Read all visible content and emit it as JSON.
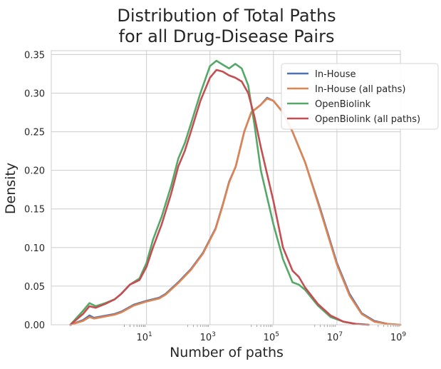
{
  "chart_data": {
    "type": "line",
    "title": [
      "Distribution of Total Paths",
      "for all Drug-Disease Pairs"
    ],
    "xlabel": "Number of paths",
    "ylabel": "Density",
    "xscale": "log10",
    "xlim": [
      0.01,
      1000000000
    ],
    "ylim": [
      0,
      0.355
    ],
    "x_ticks": [
      {
        "value": 10,
        "base": "10",
        "exp": "1"
      },
      {
        "value": 1000,
        "base": "10",
        "exp": "3"
      },
      {
        "value": 100000,
        "base": "10",
        "exp": "5"
      },
      {
        "value": 10000000,
        "base": "10",
        "exp": "7"
      },
      {
        "value": 1000000000,
        "base": "10",
        "exp": "9"
      }
    ],
    "y_ticks": [
      "0.00",
      "0.05",
      "0.10",
      "0.15",
      "0.20",
      "0.25",
      "0.30",
      "0.35"
    ],
    "grid": true,
    "legend_position": "top-right",
    "series": [
      {
        "name": "In-House",
        "color": "#4c72b0",
        "points": [
          [
            0.04,
            0
          ],
          [
            0.1,
            0.006
          ],
          [
            0.16,
            0.012
          ],
          [
            0.22,
            0.009
          ],
          [
            0.4,
            0.011
          ],
          [
            1,
            0.014
          ],
          [
            1.6,
            0.017
          ],
          [
            4,
            0.026
          ],
          [
            10,
            0.031
          ],
          [
            25,
            0.035
          ],
          [
            40,
            0.04
          ],
          [
            100,
            0.055
          ],
          [
            250,
            0.072
          ],
          [
            600,
            0.093
          ],
          [
            1500,
            0.125
          ],
          [
            2500,
            0.155
          ],
          [
            4000,
            0.185
          ],
          [
            6500,
            0.205
          ],
          [
            12000,
            0.25
          ],
          [
            20000,
            0.275
          ],
          [
            40000,
            0.285
          ],
          [
            63000,
            0.294
          ],
          [
            100000,
            0.29
          ],
          [
            200000,
            0.275
          ],
          [
            400000,
            0.25
          ],
          [
            1000000,
            0.21
          ],
          [
            3000000,
            0.15
          ],
          [
            10000000,
            0.08
          ],
          [
            25000000,
            0.04
          ],
          [
            60000000,
            0.015
          ],
          [
            150000000,
            0.005
          ],
          [
            400000000,
            0.001
          ],
          [
            1000000000,
            0
          ]
        ]
      },
      {
        "name": "In-House (all paths)",
        "color": "#dd8452",
        "points": [
          [
            0.04,
            0
          ],
          [
            0.1,
            0.005
          ],
          [
            0.16,
            0.01
          ],
          [
            0.22,
            0.008
          ],
          [
            0.4,
            0.01
          ],
          [
            1,
            0.013
          ],
          [
            1.6,
            0.016
          ],
          [
            4,
            0.025
          ],
          [
            10,
            0.03
          ],
          [
            25,
            0.034
          ],
          [
            40,
            0.039
          ],
          [
            100,
            0.054
          ],
          [
            250,
            0.071
          ],
          [
            600,
            0.092
          ],
          [
            1500,
            0.124
          ],
          [
            2500,
            0.154
          ],
          [
            4000,
            0.184
          ],
          [
            6500,
            0.205
          ],
          [
            12000,
            0.25
          ],
          [
            20000,
            0.275
          ],
          [
            40000,
            0.285
          ],
          [
            63000,
            0.293
          ],
          [
            100000,
            0.29
          ],
          [
            200000,
            0.275
          ],
          [
            400000,
            0.25
          ],
          [
            1000000,
            0.21
          ],
          [
            3000000,
            0.148
          ],
          [
            10000000,
            0.078
          ],
          [
            25000000,
            0.038
          ],
          [
            60000000,
            0.014
          ],
          [
            150000000,
            0.004
          ],
          [
            400000000,
            0.001
          ],
          [
            1000000000,
            0
          ]
        ]
      },
      {
        "name": "OpenBiolink",
        "color": "#55a868",
        "points": [
          [
            0.04,
            0
          ],
          [
            0.1,
            0.018
          ],
          [
            0.16,
            0.028
          ],
          [
            0.25,
            0.024
          ],
          [
            0.5,
            0.028
          ],
          [
            1,
            0.033
          ],
          [
            1.6,
            0.04
          ],
          [
            3,
            0.052
          ],
          [
            6,
            0.06
          ],
          [
            10,
            0.08
          ],
          [
            16,
            0.11
          ],
          [
            30,
            0.14
          ],
          [
            60,
            0.18
          ],
          [
            100,
            0.215
          ],
          [
            160,
            0.235
          ],
          [
            250,
            0.26
          ],
          [
            500,
            0.3
          ],
          [
            1000,
            0.335
          ],
          [
            1600,
            0.342
          ],
          [
            2500,
            0.337
          ],
          [
            4000,
            0.332
          ],
          [
            6300,
            0.338
          ],
          [
            10000,
            0.332
          ],
          [
            16000,
            0.31
          ],
          [
            25000,
            0.26
          ],
          [
            40000,
            0.2
          ],
          [
            100000,
            0.13
          ],
          [
            200000,
            0.085
          ],
          [
            400000,
            0.055
          ],
          [
            630000,
            0.052
          ],
          [
            1000000,
            0.045
          ],
          [
            2500000,
            0.025
          ],
          [
            6300000,
            0.01
          ],
          [
            16000000,
            0.004
          ],
          [
            40000000,
            0.001
          ],
          [
            100000000,
            0
          ]
        ]
      },
      {
        "name": "OpenBiolink (all paths)",
        "color": "#c44e52",
        "points": [
          [
            0.04,
            0
          ],
          [
            0.1,
            0.014
          ],
          [
            0.16,
            0.024
          ],
          [
            0.25,
            0.022
          ],
          [
            0.5,
            0.027
          ],
          [
            1,
            0.033
          ],
          [
            1.6,
            0.04
          ],
          [
            3,
            0.052
          ],
          [
            6,
            0.058
          ],
          [
            10,
            0.075
          ],
          [
            16,
            0.1
          ],
          [
            30,
            0.13
          ],
          [
            60,
            0.17
          ],
          [
            100,
            0.205
          ],
          [
            160,
            0.225
          ],
          [
            250,
            0.25
          ],
          [
            500,
            0.29
          ],
          [
            1000,
            0.32
          ],
          [
            1600,
            0.33
          ],
          [
            2500,
            0.328
          ],
          [
            4000,
            0.323
          ],
          [
            6300,
            0.32
          ],
          [
            10000,
            0.315
          ],
          [
            16000,
            0.3
          ],
          [
            25000,
            0.27
          ],
          [
            40000,
            0.23
          ],
          [
            100000,
            0.16
          ],
          [
            200000,
            0.1
          ],
          [
            400000,
            0.07
          ],
          [
            630000,
            0.062
          ],
          [
            1000000,
            0.048
          ],
          [
            2500000,
            0.027
          ],
          [
            6300000,
            0.012
          ],
          [
            16000000,
            0.004
          ],
          [
            40000000,
            0.001
          ],
          [
            100000000,
            0
          ]
        ]
      }
    ]
  }
}
